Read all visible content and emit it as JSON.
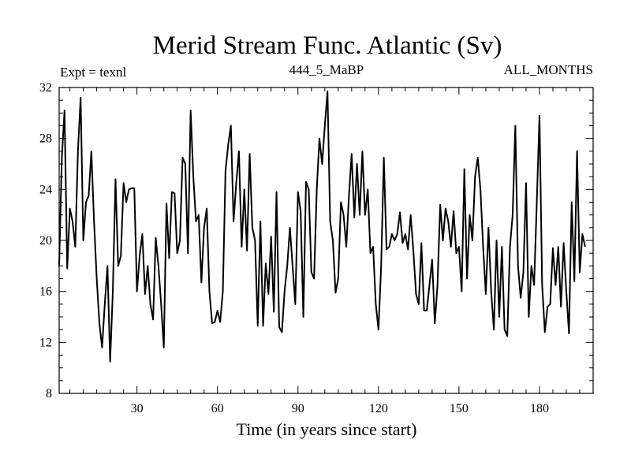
{
  "chart_data": {
    "type": "line",
    "title": "Merid Stream Func. Atlantic (Sv)",
    "subtitle_left": "Expt = texnl",
    "subtitle_center": "444_5_MaBP",
    "subtitle_right": "ALL_MONTHS",
    "xlabel": "Time (in years since start)",
    "ylabel": "",
    "xlim": [
      1,
      200
    ],
    "ylim": [
      8,
      32
    ],
    "xticks": [
      30,
      60,
      90,
      120,
      150,
      180
    ],
    "yticks": [
      8,
      12,
      16,
      20,
      24,
      28,
      32
    ],
    "grid": false,
    "series": [
      {
        "name": "Merid Stream Func. Atlantic",
        "x_start": 1,
        "x_step": 1,
        "values": [
          18.0,
          26.5,
          30.2,
          17.8,
          22.5,
          21.5,
          19.5,
          27.0,
          31.2,
          20.0,
          23.0,
          23.5,
          27.0,
          21.5,
          17.0,
          13.5,
          11.6,
          15.0,
          18.0,
          10.5,
          16.0,
          24.8,
          18.0,
          18.8,
          24.5,
          23.0,
          24.0,
          24.1,
          24.1,
          16.0,
          18.8,
          20.5,
          15.8,
          18.0,
          15.0,
          13.8,
          20.2,
          18.0,
          15.0,
          11.6,
          22.9,
          18.6,
          23.8,
          23.7,
          19.0,
          20.0,
          26.5,
          26.0,
          19.0,
          30.2,
          25.0,
          21.5,
          22.0,
          16.7,
          21.0,
          22.5,
          16.0,
          13.5,
          13.6,
          14.5,
          13.6,
          16.0,
          25.5,
          27.5,
          29.0,
          21.5,
          24.5,
          27.0,
          19.5,
          24.0,
          19.2,
          26.8,
          21.0,
          20.0,
          13.3,
          21.5,
          13.3,
          18.2,
          15.8,
          20.3,
          14.4,
          23.8,
          13.2,
          12.8,
          16.0,
          18.0,
          21.0,
          18.0,
          15.0,
          23.8,
          22.3,
          14.0,
          24.6,
          24.0,
          17.5,
          17.0,
          24.0,
          28.0,
          26.0,
          29.0,
          31.7,
          21.5,
          20.0,
          15.9,
          17.0,
          23.0,
          22.0,
          19.5,
          23.5,
          26.8,
          21.8,
          26.0,
          22.0,
          27.0,
          22.0,
          24.0,
          19.0,
          19.5,
          15.0,
          13.0,
          18.0,
          26.5,
          19.3,
          19.5,
          20.5,
          20.0,
          20.5,
          22.2,
          19.8,
          20.5,
          19.3,
          22.0,
          19.2,
          15.8,
          15.0,
          19.8,
          14.5,
          14.5,
          16.5,
          18.5,
          13.5,
          16.5,
          22.8,
          20.0,
          22.5,
          21.5,
          19.5,
          22.3,
          19.0,
          19.5,
          16.0,
          25.6,
          17.0,
          22.0,
          20.0,
          25.0,
          26.5,
          24.0,
          19.5,
          15.8,
          21.0,
          16.0,
          13.0,
          20.0,
          14.0,
          19.5,
          13.0,
          12.5,
          19.5,
          22.0,
          29.0,
          18.0,
          15.5,
          17.5,
          24.5,
          14.0,
          18.0,
          16.5,
          23.0,
          29.8,
          16.5,
          12.8,
          14.8,
          15.0,
          19.4,
          16.5,
          19.5,
          14.8,
          19.8,
          16.0,
          12.7,
          23.0,
          16.8,
          27.0,
          17.5,
          20.5,
          19.5
        ]
      }
    ]
  }
}
